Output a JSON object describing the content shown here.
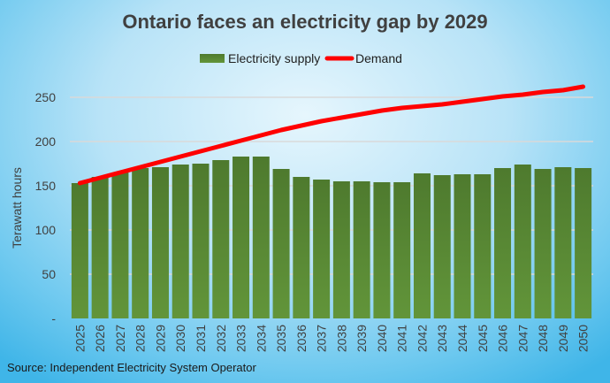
{
  "chart_data": {
    "type": "bar",
    "title": "Ontario faces an electricity gap by 2029",
    "ylabel": "Terawatt hours",
    "xlabel": "",
    "ylim": [
      0,
      270
    ],
    "yticks": [
      {
        "value": 0,
        "label": "-"
      },
      {
        "value": 50,
        "label": "50"
      },
      {
        "value": 100,
        "label": "100"
      },
      {
        "value": 150,
        "label": "150"
      },
      {
        "value": 200,
        "label": "200"
      },
      {
        "value": 250,
        "label": "250"
      }
    ],
    "grid": true,
    "legend_position": "top",
    "categories": [
      "2025",
      "2026",
      "2027",
      "2028",
      "2029",
      "2030",
      "2031",
      "2032",
      "2033",
      "2034",
      "2035",
      "2036",
      "2037",
      "2038",
      "2039",
      "2040",
      "2041",
      "2042",
      "2043",
      "2044",
      "2045",
      "2046",
      "2047",
      "2048",
      "2049",
      "2050"
    ],
    "series": [
      {
        "name": "Electricity supply",
        "type": "bar",
        "color": "#548235",
        "values": [
          153,
          160,
          165,
          170,
          171,
          174,
          175,
          179,
          183,
          183,
          169,
          160,
          157,
          155,
          155,
          154,
          154,
          164,
          162,
          163,
          163,
          170,
          174,
          169,
          171,
          170
        ]
      },
      {
        "name": "Demand",
        "type": "line",
        "color": "#ff0000",
        "values": [
          153,
          159,
          165,
          171,
          177,
          183,
          189,
          195,
          201,
          207,
          213,
          218,
          223,
          227,
          231,
          235,
          238,
          240,
          242,
          245,
          248,
          251,
          253,
          256,
          258,
          262
        ]
      }
    ],
    "source": "Source: Independent Electricity System Operator"
  }
}
